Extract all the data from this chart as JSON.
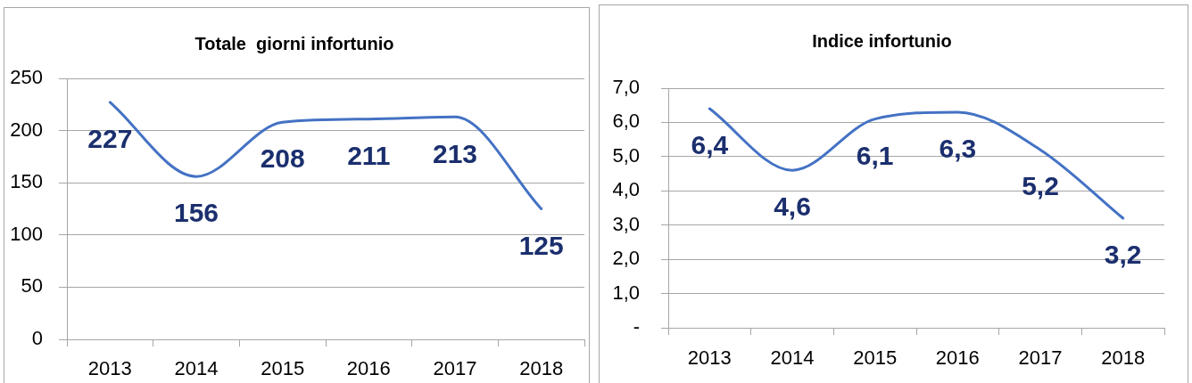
{
  "chart_data": [
    {
      "type": "line",
      "title": "Totale  giorni infortunio",
      "categories": [
        "2013",
        "2014",
        "2015",
        "2016",
        "2017",
        "2018"
      ],
      "values": [
        227,
        156,
        208,
        211,
        213,
        125
      ],
      "color": "#4472c4",
      "ylim": [
        0,
        250
      ],
      "yticks": [
        0,
        50,
        100,
        150,
        200,
        250
      ],
      "grid": "y",
      "marker": "none",
      "data_labels": true
    },
    {
      "type": "line",
      "title": "Indice infortunio",
      "categories": [
        "2013",
        "2014",
        "2015",
        "2016",
        "2017",
        "2018"
      ],
      "values": [
        6.4,
        4.6,
        6.1,
        6.3,
        5.2,
        3.2
      ],
      "color": "#4472c4",
      "ylim": [
        0,
        7
      ],
      "yticks": [
        {
          "value": 0,
          "label": "-"
        },
        {
          "value": 1,
          "label": "1,0"
        },
        {
          "value": 2,
          "label": "2,0"
        },
        {
          "value": 3,
          "label": "3,0"
        },
        {
          "value": 4,
          "label": "4,0"
        },
        {
          "value": 5,
          "label": "5,0"
        },
        {
          "value": 6,
          "label": "6,0"
        },
        {
          "value": 7,
          "label": "7,0"
        }
      ],
      "grid": "y",
      "marker": "none",
      "value_labels": [
        "6,4",
        "4,6",
        "6,1",
        "6,3",
        "5,2",
        "3,2"
      ]
    }
  ]
}
